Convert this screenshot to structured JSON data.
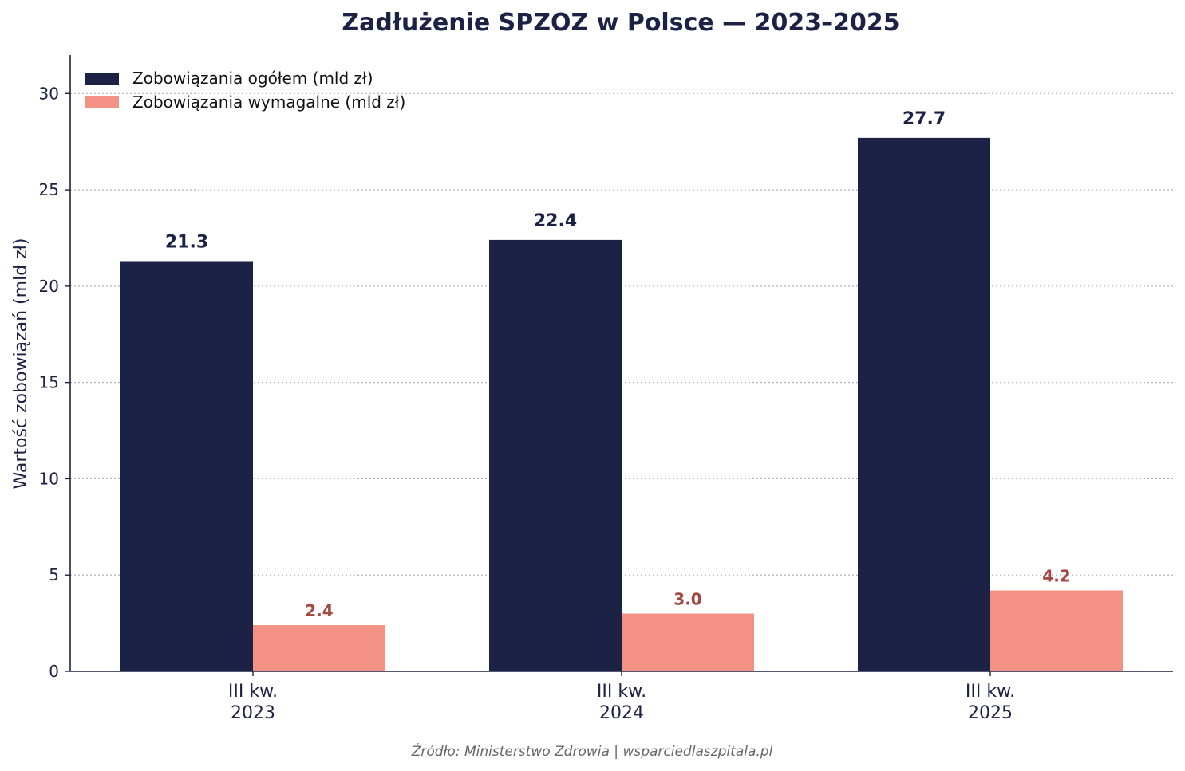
{
  "chart_data": {
    "type": "bar",
    "title": "Zadłużenie SPZOZ w Polsce — 2023–2025",
    "xlabel": "",
    "ylabel": "Wartość zobowiązań (mld zł)",
    "categories": [
      [
        "III kw.",
        "2023"
      ],
      [
        "III kw.",
        "2024"
      ],
      [
        "III kw.",
        "2025"
      ]
    ],
    "series": [
      {
        "name": "Zobowiązania ogółem (mld zł)",
        "values": [
          21.3,
          22.4,
          27.7
        ],
        "labels": [
          "21.3",
          "22.4",
          "27.7"
        ],
        "color": "#1b2245",
        "label_color": "#1b2245"
      },
      {
        "name": "Zobowiązania wymagalne (mld zł)",
        "values": [
          2.4,
          3.0,
          4.2
        ],
        "labels": [
          "2.4",
          "3.0",
          "4.2"
        ],
        "color": "#f49185",
        "label_color": "#a5463f"
      }
    ],
    "ylim": [
      0,
      32
    ],
    "yticks": [
      0,
      5,
      10,
      15,
      20,
      25,
      30
    ],
    "ytick_labels": [
      "0",
      "5",
      "10",
      "15",
      "20",
      "25",
      "30"
    ],
    "grid": "horizontal dotted",
    "legend_position": "top-left",
    "source": "Źródło: Ministerstwo Zdrowia | wsparciedlaszpitala.pl"
  },
  "colors": {
    "axis": "#1b2245",
    "text": "#1b2245",
    "grid": "#b3b3b3",
    "source": "#666666"
  }
}
